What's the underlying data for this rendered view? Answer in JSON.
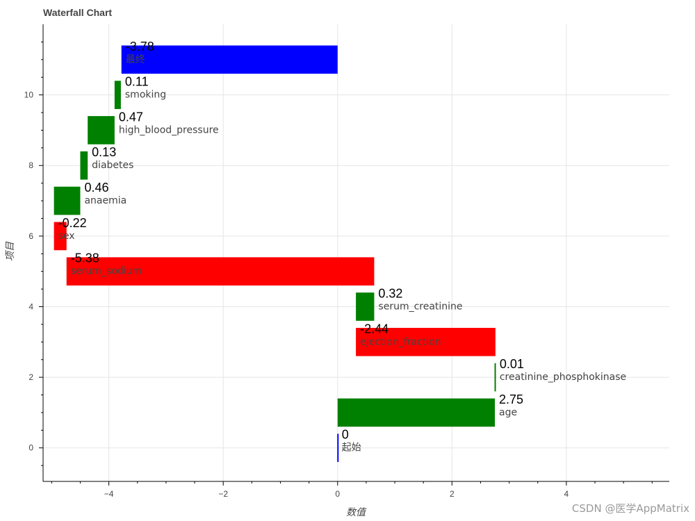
{
  "chart_data": {
    "type": "bar",
    "orientation": "horizontal-waterfall",
    "title": "Waterfall Chart",
    "xlabel": "数值",
    "ylabel": "项目",
    "xlim": [
      -5.15,
      5.8
    ],
    "ylim": [
      -0.95,
      12.0
    ],
    "xticks": [
      -4,
      -2,
      0,
      2,
      4
    ],
    "yticks": [
      0,
      2,
      4,
      6,
      8,
      10
    ],
    "grid": true,
    "colors": {
      "positive": "#008000",
      "negative": "#ff0000",
      "total": "#0000ff"
    },
    "bars": [
      {
        "y": 0,
        "name": "起始",
        "value": 0,
        "value_label": "0",
        "start": 0,
        "end": 0,
        "kind": "total"
      },
      {
        "y": 1,
        "name": "age",
        "value": 2.75,
        "value_label": "2.75",
        "start": 0,
        "end": 2.75,
        "kind": "positive"
      },
      {
        "y": 2,
        "name": "creatinine_phosphokinase",
        "value": 0.01,
        "value_label": "0.01",
        "start": 2.75,
        "end": 2.76,
        "kind": "positive"
      },
      {
        "y": 3,
        "name": "ejection_fraction",
        "value": -2.44,
        "value_label": "-2.44",
        "start": 2.76,
        "end": 0.32,
        "kind": "negative"
      },
      {
        "y": 4,
        "name": "serum_creatinine",
        "value": 0.32,
        "value_label": "0.32",
        "start": 0.32,
        "end": 0.64,
        "kind": "positive"
      },
      {
        "y": 5,
        "name": "serum_sodium",
        "value": -5.38,
        "value_label": "-5.38",
        "start": 0.64,
        "end": -4.74,
        "kind": "negative"
      },
      {
        "y": 6,
        "name": "sex",
        "value": -0.22,
        "value_label": "-0.22",
        "start": -4.74,
        "end": -4.96,
        "kind": "negative"
      },
      {
        "y": 7,
        "name": "anaemia",
        "value": 0.46,
        "value_label": "0.46",
        "start": -4.96,
        "end": -4.5,
        "kind": "positive"
      },
      {
        "y": 8,
        "name": "diabetes",
        "value": 0.13,
        "value_label": "0.13",
        "start": -4.5,
        "end": -4.37,
        "kind": "positive"
      },
      {
        "y": 9,
        "name": "high_blood_pressure",
        "value": 0.47,
        "value_label": "0.47",
        "start": -4.37,
        "end": -3.9,
        "kind": "positive"
      },
      {
        "y": 10,
        "name": "smoking",
        "value": 0.11,
        "value_label": "0.11",
        "start": -3.9,
        "end": -3.79,
        "kind": "positive"
      },
      {
        "y": 11,
        "name": "最终",
        "value": -3.78,
        "value_label": "-3.78",
        "start": -3.78,
        "end": 0,
        "kind": "total"
      }
    ]
  },
  "watermark": "CSDN @医学AppMatrix"
}
